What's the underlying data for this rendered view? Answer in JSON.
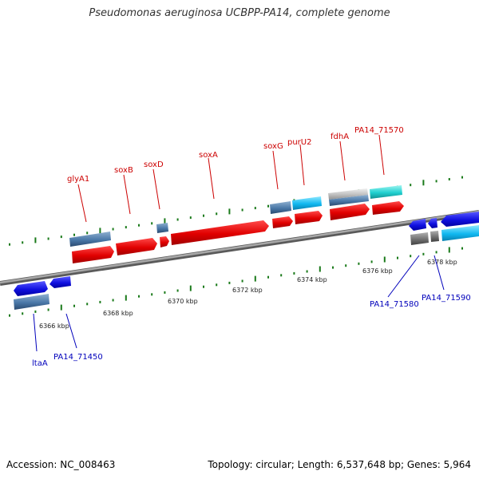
{
  "title": "Pseudomonas aeruginosa UCBPP-PA14, complete genome",
  "footer": {
    "accession": "Accession: NC_008463",
    "stats": "Topology: circular; Length: 6,537,648 bp; Genes: 5,964"
  },
  "colors": {
    "forward_label": "#cc0000",
    "reverse_label": "#0000bb",
    "backbone": "#8a8a8a",
    "tick": "#1a7a1a"
  },
  "scale": {
    "unit": "kbp",
    "labels": [
      "6366 kbp",
      "6368 kbp",
      "6370 kbp",
      "6372 kbp",
      "6374 kbp",
      "6376 kbp",
      "6378 kbp"
    ]
  },
  "genes_forward": [
    "glyA1",
    "soxB",
    "soxD",
    "soxA",
    "soxG",
    "purU2",
    "fdhA",
    "PA14_71570"
  ],
  "genes_reverse": [
    "ltaA",
    "PA14_71450",
    "PA14_71580",
    "PA14_71590"
  ]
}
